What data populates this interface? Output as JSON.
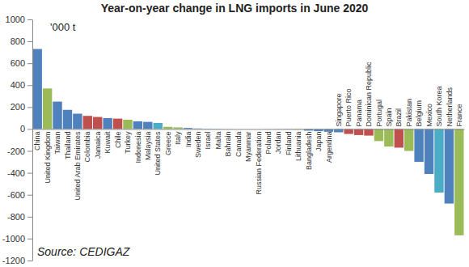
{
  "chart_data": {
    "type": "bar",
    "title": "Year-on-year change in LNG imports in June 2020",
    "annotations": [
      "'000 t",
      "Source: CEDIGAZ"
    ],
    "categories": [
      "China",
      "United Kingdom",
      "Taiwan",
      "Thailand",
      "United Arab Emirates",
      "Colombia",
      "Jamaica",
      "Kuwait",
      "Chile",
      "Turkey",
      "Indonesia",
      "Malaysia",
      "United States",
      "Greece",
      "Italy",
      "India",
      "Sweden",
      "Israel",
      "Malta",
      "Bahrain",
      "Canada",
      "Myanmar",
      "Russian Federation",
      "Poland",
      "Jordan",
      "Finland",
      "Lithuania",
      "Bangladesh",
      "Japan",
      "Argentina",
      "Singapore",
      "Puerto Rico",
      "Panama",
      "Dominican Republic",
      "Portugal",
      "Spain",
      "Brazil",
      "Pakistan",
      "Belgium",
      "Mexico",
      "South Korea",
      "Netherlands",
      "France"
    ],
    "values": [
      730,
      370,
      250,
      175,
      140,
      120,
      110,
      100,
      95,
      85,
      70,
      65,
      55,
      20,
      15,
      10,
      5,
      3,
      2,
      1,
      0,
      0,
      0,
      -1,
      -2,
      -3,
      -5,
      -15,
      -20,
      -25,
      -30,
      -45,
      -55,
      -60,
      -110,
      -160,
      -170,
      -200,
      -300,
      -410,
      -580,
      -680,
      -970
    ],
    "colors": [
      "#4f81bd",
      "#9bbb59",
      "#4f81bd",
      "#4f81bd",
      "#4f81bd",
      "#c0504d",
      "#c0504d",
      "#4f81bd",
      "#c0504d",
      "#9bbb59",
      "#4f81bd",
      "#4f81bd",
      "#4bacc6",
      "#9bbb59",
      "#9bbb59",
      "#4f81bd",
      "#4f81bd",
      "#4f81bd",
      "#4f81bd",
      "#4f81bd",
      "#4f81bd",
      "#4f81bd",
      "#4f81bd",
      "#4f81bd",
      "#4f81bd",
      "#4f81bd",
      "#9bbb59",
      "#4f81bd",
      "#4f81bd",
      "#4f81bd",
      "#4f81bd",
      "#c0504d",
      "#c0504d",
      "#c0504d",
      "#9bbb59",
      "#9bbb59",
      "#c0504d",
      "#9bbb59",
      "#4f81bd",
      "#4f81bd",
      "#4bacc6",
      "#4f81bd",
      "#9bbb59"
    ],
    "ylim": [
      -1200,
      1000
    ],
    "yticks": [
      -1200,
      -1000,
      -800,
      -600,
      -400,
      -200,
      0,
      200,
      400,
      600,
      800,
      1000
    ],
    "grid": false
  }
}
